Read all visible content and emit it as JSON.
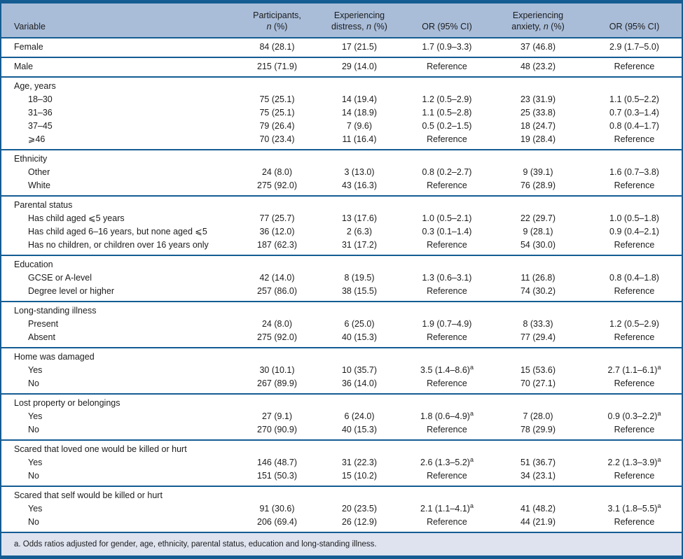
{
  "colors": {
    "border": "#155c93",
    "header_bg": "#a9bdd9",
    "footnote_bg": "#dee3ef",
    "text": "#1c1c1c"
  },
  "table": {
    "columns": [
      {
        "lines": [
          "Variable"
        ]
      },
      {
        "lines": [
          "Participants,",
          "*n* (%)"
        ]
      },
      {
        "lines": [
          "Experiencing",
          "distress, *n* (%)"
        ]
      },
      {
        "lines": [
          "OR (95% CI)"
        ]
      },
      {
        "lines": [
          "Experiencing",
          "anxiety, *n* (%)"
        ]
      },
      {
        "lines": [
          "OR (95% CI)"
        ]
      }
    ],
    "sections": [
      {
        "header": null,
        "rows": [
          {
            "label": "Female",
            "values": [
              "84 (28.1)",
              "17 (21.5)",
              "1.7 (0.9–3.3)",
              "37 (46.8)",
              "2.9 (1.7–5.0)"
            ]
          }
        ]
      },
      {
        "header": null,
        "rows": [
          {
            "label": "Male",
            "values": [
              "215 (71.9)",
              "29 (14.0)",
              "Reference",
              "48 (23.2)",
              "Reference"
            ]
          }
        ]
      },
      {
        "header": "Age, years",
        "rows": [
          {
            "label": "18–30",
            "values": [
              "75 (25.1)",
              "14 (19.4)",
              "1.2 (0.5–2.9)",
              "23 (31.9)",
              "1.1 (0.5–2.2)"
            ]
          },
          {
            "label": "31–36",
            "values": [
              "75 (25.1)",
              "14 (18.9)",
              "1.1 (0.5–2.8)",
              "25 (33.8)",
              "0.7 (0.3–1.4)"
            ]
          },
          {
            "label": "37–45",
            "values": [
              "79 (26.4)",
              "7 (9.6)",
              "0.5 (0.2–1.5)",
              "18 (24.7)",
              "0.8 (0.4–1.7)"
            ]
          },
          {
            "label": "⩾46",
            "values": [
              "70 (23.4)",
              "11 (16.4)",
              "Reference",
              "19 (28.4)",
              "Reference"
            ]
          }
        ]
      },
      {
        "header": "Ethnicity",
        "rows": [
          {
            "label": "Other",
            "values": [
              "24 (8.0)",
              "3 (13.0)",
              "0.8 (0.2–2.7)",
              "9 (39.1)",
              "1.6 (0.7–3.8)"
            ]
          },
          {
            "label": "White",
            "values": [
              "275 (92.0)",
              "43 (16.3)",
              "Reference",
              "76 (28.9)",
              "Reference"
            ]
          }
        ]
      },
      {
        "header": "Parental status",
        "rows": [
          {
            "label": "Has child aged ⩽5 years",
            "values": [
              "77 (25.7)",
              "13 (17.6)",
              "1.0 (0.5–2.1)",
              "22 (29.7)",
              "1.0 (0.5–1.8)"
            ]
          },
          {
            "label": "Has child aged 6–16 years, but none aged ⩽5",
            "values": [
              "36 (12.0)",
              "2 (6.3)",
              "0.3 (0.1–1.4)",
              "9 (28.1)",
              "0.9 (0.4–2.1)"
            ]
          },
          {
            "label": "Has no children, or children over 16 years only",
            "values": [
              "187 (62.3)",
              "31 (17.2)",
              "Reference",
              "54 (30.0)",
              "Reference"
            ]
          }
        ]
      },
      {
        "header": "Education",
        "rows": [
          {
            "label": "GCSE or A-level",
            "values": [
              "42 (14.0)",
              "8 (19.5)",
              "1.3 (0.6–3.1)",
              "11 (26.8)",
              "0.8 (0.4–1.8)"
            ]
          },
          {
            "label": "Degree level or higher",
            "values": [
              "257 (86.0)",
              "38 (15.5)",
              "Reference",
              "74 (30.2)",
              "Reference"
            ]
          }
        ]
      },
      {
        "header": "Long-standing illness",
        "rows": [
          {
            "label": "Present",
            "values": [
              "24 (8.0)",
              "6 (25.0)",
              "1.9 (0.7–4.9)",
              "8 (33.3)",
              "1.2 (0.5–2.9)"
            ]
          },
          {
            "label": "Absent",
            "values": [
              "275 (92.0)",
              "40 (15.3)",
              "Reference",
              "77 (29.4)",
              "Reference"
            ]
          }
        ]
      },
      {
        "header": "Home was damaged",
        "rows": [
          {
            "label": "Yes",
            "values": [
              "30 (10.1)",
              "10 (35.7)",
              "3.5 (1.4–8.6)^a",
              "15 (53.6)",
              "2.7 (1.1–6.1)^a"
            ]
          },
          {
            "label": "No",
            "values": [
              "267 (89.9)",
              "36 (14.0)",
              "Reference",
              "70 (27.1)",
              "Reference"
            ]
          }
        ]
      },
      {
        "header": "Lost property or belongings",
        "rows": [
          {
            "label": "Yes",
            "values": [
              "27 (9.1)",
              "6 (24.0)",
              "1.8 (0.6–4.9)^a",
              "7 (28.0)",
              "0.9 (0.3–2.2)^a"
            ]
          },
          {
            "label": "No",
            "values": [
              "270 (90.9)",
              "40 (15.3)",
              "Reference",
              "78 (29.9)",
              "Reference"
            ]
          }
        ]
      },
      {
        "header": "Scared that loved one would be killed or hurt",
        "rows": [
          {
            "label": "Yes",
            "values": [
              "146 (48.7)",
              "31 (22.3)",
              "2.6 (1.3–5.2)^a",
              "51 (36.7)",
              "2.2 (1.3–3.9)^a"
            ]
          },
          {
            "label": "No",
            "values": [
              "151 (50.3)",
              "15 (10.2)",
              "Reference",
              "34 (23.1)",
              "Reference"
            ]
          }
        ]
      },
      {
        "header": "Scared that self would be killed or hurt",
        "rows": [
          {
            "label": "Yes",
            "values": [
              "91 (30.6)",
              "20 (23.5)",
              "2.1 (1.1–4.1)^a",
              "41 (48.2)",
              "3.1 (1.8–5.5)^a"
            ]
          },
          {
            "label": "No",
            "values": [
              "206 (69.4)",
              "26 (12.9)",
              "Reference",
              "44 (21.9)",
              "Reference"
            ]
          }
        ]
      }
    ]
  },
  "footnote": {
    "text": "a. Odds ratios adjusted for gender, age, ethnicity, parental status, education and long-standing illness."
  }
}
